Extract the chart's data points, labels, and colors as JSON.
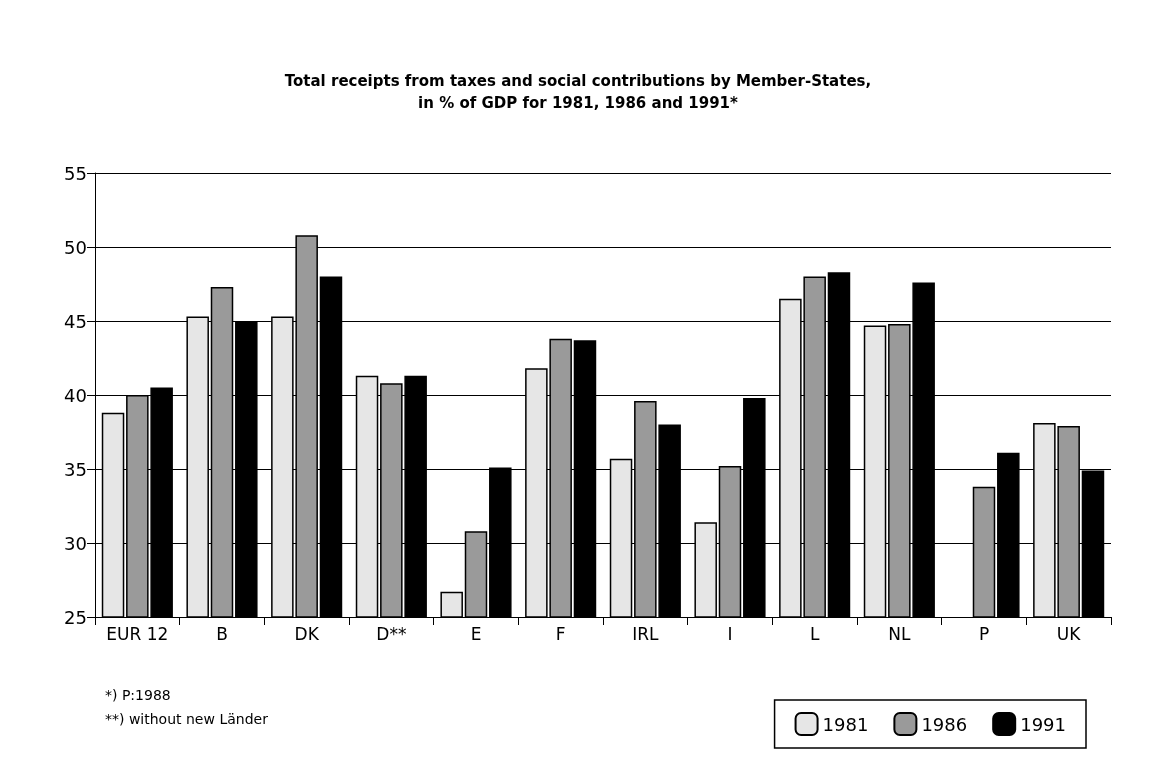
{
  "chart_data": {
    "type": "bar",
    "title": "Total receipts from taxes and social contributions by Member-States,\nin % of GDP for 1981, 1986 and 1991*",
    "categories": [
      "EUR 12",
      "B",
      "DK",
      "D**",
      "E",
      "F",
      "IRL",
      "I",
      "L",
      "NL",
      "P",
      "UK"
    ],
    "series": [
      {
        "name": "1981",
        "color": "#e6e6e6",
        "values": [
          38.8,
          45.3,
          45.3,
          41.3,
          26.7,
          41.8,
          35.7,
          31.4,
          46.5,
          44.7,
          null,
          38.1
        ]
      },
      {
        "name": "1986",
        "color": "#9a9a9a",
        "values": [
          40.0,
          47.3,
          50.8,
          40.8,
          30.8,
          43.8,
          39.6,
          35.2,
          48.0,
          44.8,
          33.8,
          37.9
        ]
      },
      {
        "name": "1991",
        "color": "#000000",
        "values": [
          40.5,
          45.0,
          48.0,
          41.3,
          35.1,
          43.7,
          38.0,
          39.8,
          48.3,
          47.6,
          36.1,
          34.9
        ]
      }
    ],
    "ylim": [
      25,
      55
    ],
    "yticks": [
      25,
      30,
      35,
      40,
      45,
      50,
      55
    ],
    "grid": "y",
    "legend": "bottom right",
    "annotations": [
      "*) P:1988",
      "**) without new Länder"
    ]
  }
}
